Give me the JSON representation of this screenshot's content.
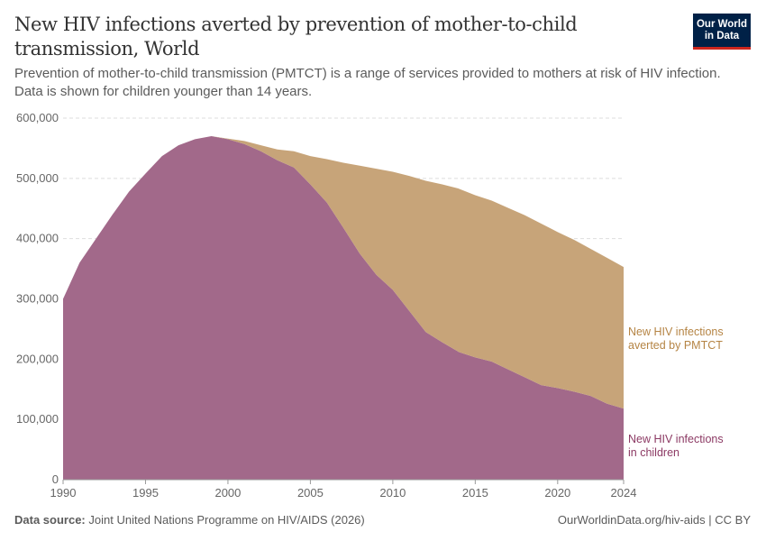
{
  "header": {
    "title": "New HIV infections averted by prevention of mother-to-child transmission, World",
    "subtitle": "Prevention of mother-to-child transmission (PMTCT) is a range of services provided to mothers at risk of HIV infection. Data is shown for children younger than 14 years.",
    "logo": "Our World in Data"
  },
  "footer": {
    "source_label": "Data source:",
    "source": "Joint United Nations Programme on HIV/AIDS (2026)",
    "link": "OurWorldinData.org/hiv-aids | CC BY"
  },
  "chart_data": {
    "type": "area",
    "stacked": true,
    "x": [
      1990,
      1991,
      1992,
      1993,
      1994,
      1995,
      1996,
      1997,
      1998,
      1999,
      2000,
      2001,
      2002,
      2003,
      2004,
      2005,
      2006,
      2007,
      2008,
      2009,
      2010,
      2011,
      2012,
      2013,
      2014,
      2015,
      2016,
      2017,
      2018,
      2019,
      2020,
      2021,
      2022,
      2023,
      2024
    ],
    "series": [
      {
        "name": "New HIV infections in children",
        "color": "#a2698a",
        "label_color": "#8c3a64",
        "values": [
          300000,
          360000,
          400000,
          440000,
          478000,
          508000,
          537000,
          555000,
          565000,
          570000,
          565000,
          557000,
          545000,
          530000,
          518000,
          490000,
          460000,
          418000,
          375000,
          340000,
          315000,
          280000,
          245000,
          228000,
          212000,
          203000,
          196000,
          183000,
          170000,
          157000,
          152000,
          146000,
          139000,
          126000,
          118000
        ]
      },
      {
        "name": "New HIV infections averted by PMTCT",
        "color": "#c7a479",
        "label_color": "#b58444",
        "values": [
          0,
          0,
          0,
          0,
          0,
          0,
          0,
          0,
          0,
          0,
          1000,
          5000,
          10000,
          18000,
          27000,
          47000,
          72000,
          108000,
          146000,
          176000,
          196000,
          224000,
          251000,
          262000,
          271000,
          269000,
          267000,
          268000,
          269000,
          268000,
          259000,
          252000,
          244000,
          242000,
          235000
        ]
      }
    ],
    "ylim": [
      0,
      600000
    ],
    "yticks": [
      "0",
      "100,000",
      "200,000",
      "300,000",
      "400,000",
      "500,000",
      "600,000"
    ],
    "xticks": [
      "1990",
      "1995",
      "2000",
      "2005",
      "2010",
      "2015",
      "2020",
      "2024"
    ],
    "grid": true,
    "legend": "right-inline"
  }
}
